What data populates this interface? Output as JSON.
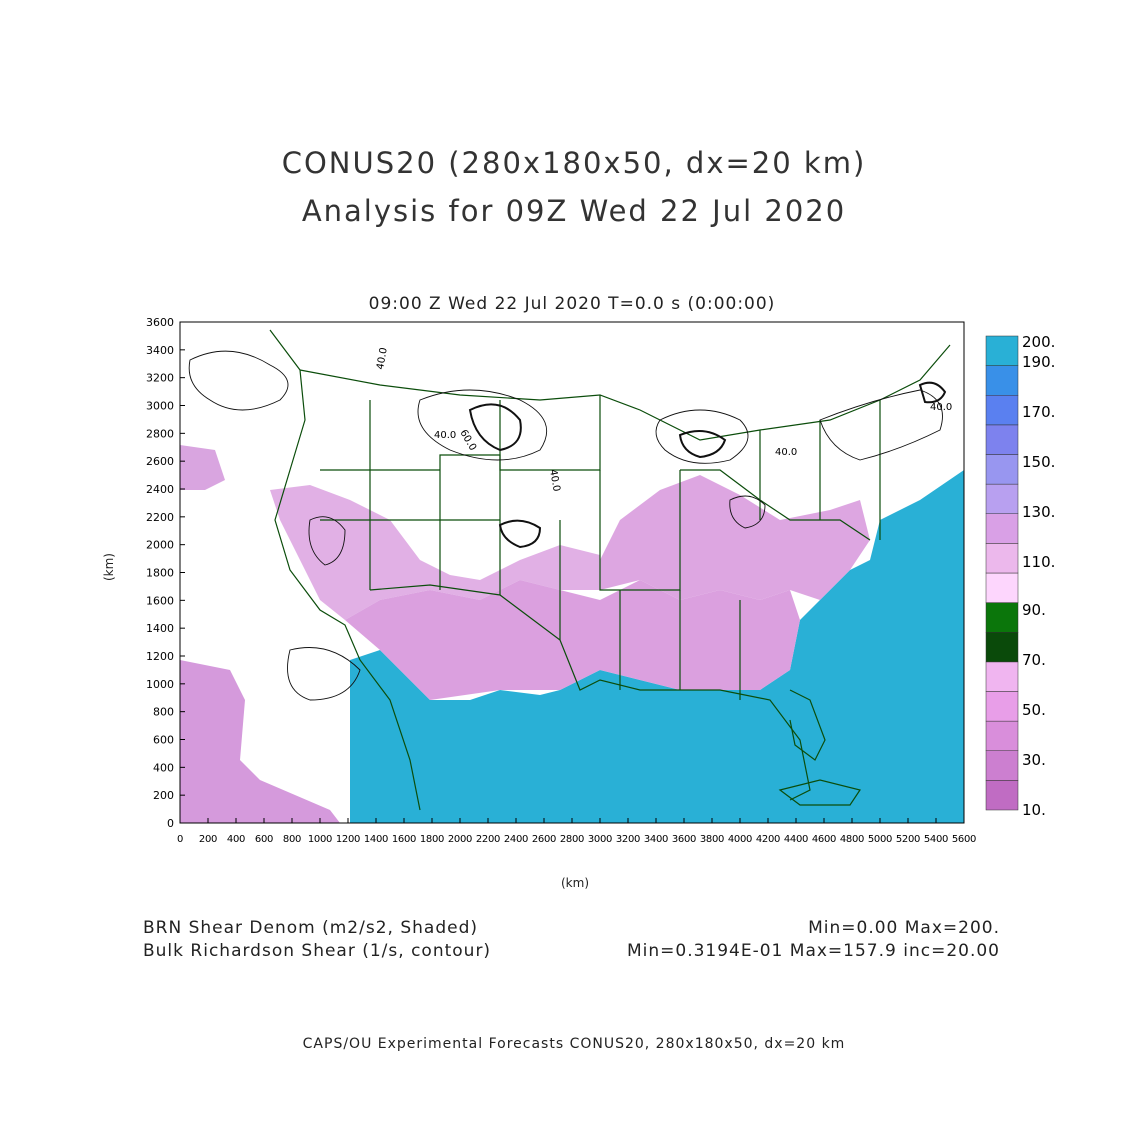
{
  "header": {
    "title_line1": "CONUS20 (280x180x50, dx=20 km)",
    "title_line2": "Analysis for 09Z Wed 22 Jul 2020",
    "subtitle": "09:00 Z Wed 22 Jul 2020    T=0.0 s (0:00:00)"
  },
  "map": {
    "x_axis": {
      "unit": "(km)",
      "ticks": [
        "0",
        "200",
        "400",
        "600",
        "800",
        "1000",
        "1200",
        "1400",
        "1600",
        "1800",
        "2000",
        "2200",
        "2400",
        "2600",
        "2800",
        "3000",
        "3200",
        "3400",
        "3600",
        "3800",
        "4000",
        "4200",
        "4400",
        "4600",
        "4800",
        "5000",
        "5200",
        "5400",
        "5600"
      ]
    },
    "y_axis": {
      "unit": "(km)",
      "ticks": [
        "0",
        "200",
        "400",
        "600",
        "800",
        "1000",
        "1200",
        "1400",
        "1600",
        "1800",
        "2000",
        "2200",
        "2400",
        "2600",
        "2800",
        "3000",
        "3200",
        "3400",
        "3600"
      ]
    },
    "contour_labels": [
      "40.0",
      "40.0",
      "60.0",
      "40.0",
      "40.0",
      "40.0"
    ],
    "colors": {
      "ocean": "#29b0d6",
      "land": "#ffffff",
      "border": "#0b4d0b"
    }
  },
  "colorbar": {
    "labels": [
      "200.",
      "190.",
      "170.",
      "150.",
      "130.",
      "110.",
      "90.",
      "70.",
      "50.",
      "30.",
      "10."
    ],
    "colors": [
      "#c06cc3",
      "#cc7fd0",
      "#d98edb",
      "#e89ee8",
      "#f0b5f0",
      "#0a4a0a",
      "#0b760b",
      "#fdd6fd",
      "#ecb8ec",
      "#d9a0e6",
      "#b8a0f0",
      "#9896f0",
      "#7d82ee",
      "#5a80f0",
      "#3990e8",
      "#29b0d6"
    ]
  },
  "footer_info": {
    "shaded_label": "BRN Shear Denom (m2/s2, Shaded)",
    "shaded_stats": "Min=0.00 Max=200.",
    "contour_label": "Bulk Richardson Shear (1/s, contour)",
    "contour_stats": "Min=0.3194E-01 Max=157.9 inc=20.00"
  },
  "credit": "CAPS/OU Experimental Forecasts  CONUS20, 280x180x50, dx=20 km"
}
